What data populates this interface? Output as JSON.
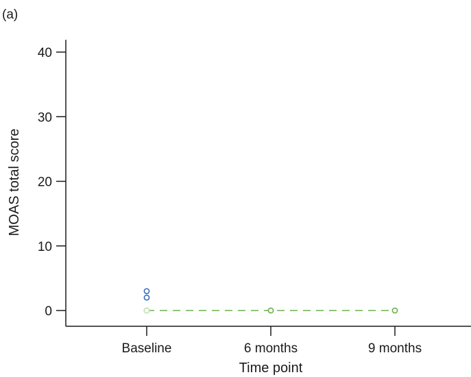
{
  "panel_label": "(a)",
  "colors": {
    "axis": "#1a1a1a",
    "series_blue": "#3b6fb3",
    "series_green": "#6ab04c",
    "series_light_green": "#c9e3b8"
  },
  "chart_data": {
    "type": "line",
    "xlabel": "Time point",
    "ylabel": "MOAS total score",
    "categories": [
      "Baseline",
      "6 months",
      "9 months"
    ],
    "ylim": [
      -2,
      42
    ],
    "yticks": [
      0,
      10,
      20,
      30,
      40
    ],
    "grid": false,
    "legend": "none",
    "series": [
      {
        "values": [
          0,
          0,
          0
        ],
        "color": "#6ab04c",
        "line": "dashed",
        "marker": "open-circle"
      },
      {
        "values": [
          3,
          null,
          null
        ],
        "color": "#3b6fb3",
        "line": "none",
        "marker": "open-circle"
      },
      {
        "values": [
          2,
          null,
          null
        ],
        "color": "#3b6fb3",
        "line": "none",
        "marker": "open-circle"
      },
      {
        "values": [
          0,
          null,
          null
        ],
        "color": "#c9e3b8",
        "line": "none",
        "marker": "open-circle"
      }
    ]
  }
}
